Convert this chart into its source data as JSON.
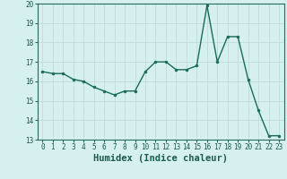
{
  "x": [
    0,
    1,
    2,
    3,
    4,
    5,
    6,
    7,
    8,
    9,
    10,
    11,
    12,
    13,
    14,
    15,
    16,
    17,
    18,
    19,
    20,
    21,
    22,
    23
  ],
  "y": [
    16.5,
    16.4,
    16.4,
    16.1,
    16.0,
    15.7,
    15.5,
    15.3,
    15.5,
    15.5,
    16.5,
    17.0,
    17.0,
    16.6,
    16.6,
    16.8,
    19.9,
    17.0,
    18.3,
    18.3,
    16.1,
    14.5,
    13.2,
    13.2
  ],
  "line_color": "#1a6b5a",
  "marker": "o",
  "markersize": 2.0,
  "linewidth": 1.0,
  "xlabel": "Humidex (Indice chaleur)",
  "xlabel_fontsize": 7.5,
  "xlabel_weight": "bold",
  "ylim": [
    13,
    20
  ],
  "xlim": [
    -0.5,
    23.5
  ],
  "yticks": [
    13,
    14,
    15,
    16,
    17,
    18,
    19,
    20
  ],
  "xticks": [
    0,
    1,
    2,
    3,
    4,
    5,
    6,
    7,
    8,
    9,
    10,
    11,
    12,
    13,
    14,
    15,
    16,
    17,
    18,
    19,
    20,
    21,
    22,
    23
  ],
  "bg_color": "#d5f0ee",
  "grid_color": "#c0dcd8",
  "tick_fontsize": 5.5,
  "spine_color": "#2a6b60"
}
